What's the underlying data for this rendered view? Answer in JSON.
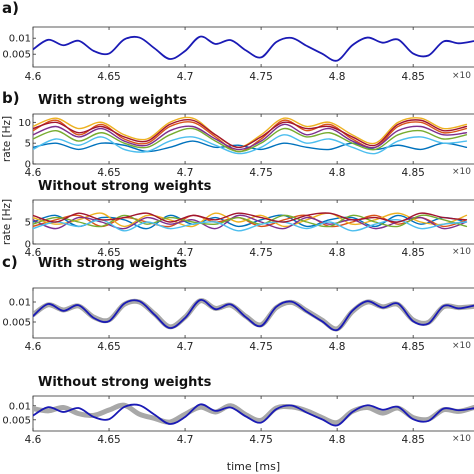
{
  "panel_labels": [
    "a)",
    "b)",
    "c)"
  ],
  "exponent_label": "×10",
  "colors": {
    "target": "#1a1ab5",
    "prediction_gray": "#a8a8a8",
    "rate_lines": [
      "#0072BD",
      "#D95319",
      "#EDB120",
      "#7E2F8E",
      "#77AC30",
      "#4DBEEE",
      "#A2142F"
    ]
  },
  "chart_data": [
    {
      "type": "line",
      "id": "a",
      "title": "",
      "xlabel": "",
      "ylabel": "",
      "xlim": [
        4.6,
        4.89
      ],
      "ylim": [
        0.001,
        0.0135
      ],
      "xticks": [
        "4.6",
        "4.65",
        "4.7",
        "4.75",
        "4.8",
        "4.85"
      ],
      "yticks": [
        "0.005",
        "0.01"
      ],
      "series": [
        {
          "role": "target",
          "x": [
            4.6,
            4.61,
            4.62,
            4.63,
            4.64,
            4.65,
            4.66,
            4.67,
            4.68,
            4.69,
            4.7,
            4.71,
            4.72,
            4.73,
            4.74,
            4.75,
            4.76,
            4.77,
            4.78,
            4.79,
            4.8,
            4.81,
            4.82,
            4.83,
            4.84,
            4.85,
            4.86,
            4.87,
            4.88,
            4.89
          ],
          "values": [
            0.0065,
            0.0095,
            0.0078,
            0.0092,
            0.006,
            0.0052,
            0.0096,
            0.0102,
            0.0068,
            0.0035,
            0.006,
            0.0105,
            0.0082,
            0.0094,
            0.0062,
            0.004,
            0.0088,
            0.0101,
            0.0076,
            0.0052,
            0.003,
            0.0078,
            0.0102,
            0.0086,
            0.0096,
            0.0052,
            0.0046,
            0.009,
            0.0084,
            0.0091
          ]
        }
      ]
    },
    {
      "type": "line",
      "id": "b1",
      "title": "With strong weights",
      "xlabel": "",
      "ylabel": "rate [Hz]",
      "xlim": [
        4.6,
        4.89
      ],
      "ylim": [
        0,
        12
      ],
      "xticks": [
        "4.6",
        "4.65",
        "4.7",
        "4.75",
        "4.8",
        "4.85"
      ],
      "yticks": [
        "0",
        "5",
        "10"
      ],
      "series": [
        {
          "x": [
            4.6,
            4.615,
            4.63,
            4.645,
            4.66,
            4.675,
            4.69,
            4.705,
            4.72,
            4.735,
            4.75,
            4.765,
            4.78,
            4.795,
            4.81,
            4.825,
            4.84,
            4.855,
            4.87,
            4.885
          ],
          "values": [
            4.0,
            5.0,
            3.5,
            5.0,
            4.5,
            3.0,
            4.0,
            5.5,
            4.0,
            4.5,
            3.5,
            5.0,
            4.0,
            3.5,
            5.0,
            3.5,
            4.5,
            3.5,
            5.0,
            4.0
          ]
        },
        {
          "x": [
            4.6,
            4.615,
            4.63,
            4.645,
            4.66,
            4.675,
            4.69,
            4.705,
            4.72,
            4.735,
            4.75,
            4.765,
            4.78,
            4.795,
            4.81,
            4.825,
            4.84,
            4.855,
            4.87,
            4.885
          ],
          "values": [
            8.0,
            10.5,
            7.0,
            9.5,
            6.0,
            5.0,
            9.0,
            10.0,
            6.5,
            3.0,
            6.0,
            10.5,
            8.0,
            9.5,
            6.0,
            4.0,
            9.0,
            10.0,
            7.5,
            8.5
          ]
        },
        {
          "x": [
            4.6,
            4.615,
            4.63,
            4.645,
            4.66,
            4.675,
            4.69,
            4.705,
            4.72,
            4.735,
            4.75,
            4.765,
            4.78,
            4.795,
            4.81,
            4.825,
            4.84,
            4.855,
            4.87,
            4.885
          ],
          "values": [
            9.0,
            11.0,
            8.5,
            10.0,
            7.0,
            6.0,
            10.0,
            11.0,
            7.0,
            4.0,
            7.0,
            11.0,
            9.0,
            10.0,
            7.0,
            5.0,
            10.0,
            11.0,
            8.5,
            9.5
          ]
        },
        {
          "x": [
            4.6,
            4.615,
            4.63,
            4.645,
            4.66,
            4.675,
            4.69,
            4.705,
            4.72,
            4.735,
            4.75,
            4.765,
            4.78,
            4.795,
            4.81,
            4.825,
            4.84,
            4.855,
            4.87,
            4.885
          ],
          "values": [
            7.0,
            9.0,
            6.5,
            8.5,
            5.5,
            4.5,
            8.0,
            9.0,
            6.0,
            3.5,
            5.5,
            9.5,
            7.0,
            8.5,
            5.5,
            4.0,
            8.0,
            9.0,
            7.0,
            7.5
          ]
        },
        {
          "x": [
            4.6,
            4.615,
            4.63,
            4.645,
            4.66,
            4.675,
            4.69,
            4.705,
            4.72,
            4.735,
            4.75,
            4.765,
            4.78,
            4.795,
            4.81,
            4.825,
            4.84,
            4.855,
            4.87,
            4.885
          ],
          "values": [
            6.0,
            8.0,
            5.5,
            7.5,
            5.0,
            4.0,
            7.0,
            8.5,
            5.5,
            3.0,
            5.0,
            8.5,
            6.5,
            7.5,
            5.0,
            3.5,
            7.0,
            8.0,
            6.0,
            7.0
          ]
        },
        {
          "x": [
            4.6,
            4.615,
            4.63,
            4.645,
            4.66,
            4.675,
            4.69,
            4.705,
            4.72,
            4.735,
            4.75,
            4.765,
            4.78,
            4.795,
            4.81,
            4.825,
            4.84,
            4.855,
            4.87,
            4.885
          ],
          "values": [
            3.5,
            6.0,
            4.5,
            6.5,
            3.5,
            3.0,
            5.5,
            6.5,
            4.5,
            2.5,
            4.0,
            7.0,
            5.0,
            6.0,
            4.0,
            2.5,
            5.5,
            6.5,
            5.0,
            5.5
          ]
        },
        {
          "x": [
            4.6,
            4.615,
            4.63,
            4.645,
            4.66,
            4.675,
            4.69,
            4.705,
            4.72,
            4.735,
            4.75,
            4.765,
            4.78,
            4.795,
            4.81,
            4.825,
            4.84,
            4.855,
            4.87,
            4.885
          ],
          "values": [
            8.5,
            10.0,
            7.5,
            9.0,
            6.5,
            5.5,
            9.5,
            10.5,
            7.0,
            4.0,
            6.5,
            10.0,
            8.5,
            9.0,
            6.5,
            4.5,
            9.5,
            10.5,
            8.0,
            9.0
          ]
        }
      ]
    },
    {
      "type": "line",
      "id": "b2",
      "title": "Without strong weights",
      "xlabel": "",
      "ylabel": "rate [Hz]",
      "xlim": [
        4.6,
        4.89
      ],
      "ylim": [
        0,
        10
      ],
      "xticks": [
        "4.6",
        "4.65",
        "4.7",
        "4.75",
        "4.8",
        "4.85"
      ],
      "yticks": [
        "0",
        "5"
      ],
      "series": [
        {
          "x": [
            4.6,
            4.615,
            4.63,
            4.645,
            4.66,
            4.675,
            4.69,
            4.705,
            4.72,
            4.735,
            4.75,
            4.765,
            4.78,
            4.795,
            4.81,
            4.825,
            4.84,
            4.855,
            4.87,
            4.885
          ],
          "values": [
            5.0,
            6.5,
            4.0,
            6.0,
            5.5,
            3.5,
            6.5,
            4.5,
            6.0,
            4.0,
            5.5,
            6.5,
            4.0,
            5.5,
            6.0,
            4.0,
            6.5,
            4.5,
            6.0,
            5.0
          ]
        },
        {
          "x": [
            4.6,
            4.615,
            4.63,
            4.645,
            4.66,
            4.675,
            4.69,
            4.705,
            4.72,
            4.735,
            4.75,
            4.765,
            4.78,
            4.795,
            4.81,
            4.825,
            4.84,
            4.855,
            4.87,
            4.885
          ],
          "values": [
            4.0,
            5.5,
            6.5,
            4.0,
            6.0,
            5.0,
            4.0,
            6.5,
            5.0,
            6.0,
            4.0,
            5.5,
            6.5,
            4.0,
            5.0,
            6.5,
            4.5,
            6.0,
            4.0,
            5.5
          ]
        },
        {
          "x": [
            4.6,
            4.615,
            4.63,
            4.645,
            4.66,
            4.675,
            4.69,
            4.705,
            4.72,
            4.735,
            4.75,
            4.765,
            4.78,
            4.795,
            4.81,
            4.825,
            4.84,
            4.855,
            4.87,
            4.885
          ],
          "values": [
            6.0,
            4.5,
            5.5,
            7.0,
            4.0,
            6.5,
            5.5,
            4.0,
            7.0,
            5.0,
            6.5,
            4.0,
            5.5,
            7.0,
            4.5,
            5.5,
            7.0,
            5.0,
            4.5,
            6.5
          ]
        },
        {
          "x": [
            4.6,
            4.615,
            4.63,
            4.645,
            4.66,
            4.675,
            4.69,
            4.705,
            4.72,
            4.735,
            4.75,
            4.765,
            4.78,
            4.795,
            4.81,
            4.825,
            4.84,
            4.855,
            4.87,
            4.885
          ],
          "values": [
            5.5,
            3.5,
            6.0,
            5.0,
            3.5,
            6.0,
            4.5,
            5.5,
            3.5,
            6.5,
            5.0,
            3.5,
            6.0,
            4.5,
            5.5,
            3.5,
            5.0,
            6.0,
            3.5,
            5.0
          ]
        },
        {
          "x": [
            4.6,
            4.615,
            4.63,
            4.645,
            4.66,
            4.675,
            4.69,
            4.705,
            4.72,
            4.735,
            4.75,
            4.765,
            4.78,
            4.795,
            4.81,
            4.825,
            4.84,
            4.855,
            4.87,
            4.885
          ],
          "values": [
            4.5,
            6.0,
            5.0,
            4.0,
            6.5,
            4.5,
            6.0,
            5.0,
            4.5,
            6.0,
            4.5,
            6.5,
            5.0,
            4.0,
            6.5,
            5.0,
            4.0,
            6.5,
            5.5,
            4.0
          ]
        },
        {
          "x": [
            4.6,
            4.615,
            4.63,
            4.645,
            4.66,
            4.675,
            4.69,
            4.705,
            4.72,
            4.735,
            4.75,
            4.765,
            4.78,
            4.795,
            4.81,
            4.825,
            4.84,
            4.855,
            4.87,
            4.885
          ],
          "values": [
            3.5,
            5.0,
            4.0,
            5.5,
            3.0,
            5.0,
            3.5,
            4.5,
            5.0,
            3.0,
            4.5,
            5.0,
            3.5,
            5.0,
            3.0,
            4.5,
            5.5,
            3.5,
            4.5,
            5.0
          ]
        },
        {
          "x": [
            4.6,
            4.615,
            4.63,
            4.645,
            4.66,
            4.675,
            4.69,
            4.705,
            4.72,
            4.735,
            4.75,
            4.765,
            4.78,
            4.795,
            4.81,
            4.825,
            4.84,
            4.855,
            4.87,
            4.885
          ],
          "values": [
            6.5,
            5.0,
            7.0,
            5.5,
            6.0,
            7.0,
            5.0,
            6.5,
            5.5,
            7.0,
            6.0,
            5.0,
            6.5,
            7.0,
            5.5,
            6.0,
            5.0,
            7.0,
            6.0,
            5.5
          ]
        }
      ]
    },
    {
      "type": "line",
      "id": "c1",
      "title": "With strong weights",
      "xlabel": "",
      "ylabel": "",
      "xlim": [
        4.6,
        4.89
      ],
      "ylim": [
        0.001,
        0.0135
      ],
      "xticks": [
        "4.6",
        "4.65",
        "4.7",
        "4.75",
        "4.8",
        "4.85"
      ],
      "yticks": [
        "0.005",
        "0.01"
      ],
      "series": [
        {
          "role": "prediction",
          "x": [
            4.6,
            4.61,
            4.62,
            4.63,
            4.64,
            4.65,
            4.66,
            4.67,
            4.68,
            4.69,
            4.7,
            4.71,
            4.72,
            4.73,
            4.74,
            4.75,
            4.76,
            4.77,
            4.78,
            4.79,
            4.8,
            4.81,
            4.82,
            4.83,
            4.84,
            4.85,
            4.86,
            4.87,
            4.88,
            4.89
          ],
          "values": [
            0.0068,
            0.0093,
            0.008,
            0.009,
            0.0062,
            0.0055,
            0.0094,
            0.01,
            0.007,
            0.0038,
            0.0062,
            0.0103,
            0.0084,
            0.0092,
            0.0064,
            0.0043,
            0.0086,
            0.0099,
            0.0078,
            0.0055,
            0.0033,
            0.0076,
            0.01,
            0.0088,
            0.0094,
            0.0055,
            0.0049,
            0.0088,
            0.0086,
            0.0089
          ]
        },
        {
          "role": "target",
          "x": [
            4.6,
            4.61,
            4.62,
            4.63,
            4.64,
            4.65,
            4.66,
            4.67,
            4.68,
            4.69,
            4.7,
            4.71,
            4.72,
            4.73,
            4.74,
            4.75,
            4.76,
            4.77,
            4.78,
            4.79,
            4.8,
            4.81,
            4.82,
            4.83,
            4.84,
            4.85,
            4.86,
            4.87,
            4.88,
            4.89
          ],
          "values": [
            0.0065,
            0.0095,
            0.0078,
            0.0092,
            0.006,
            0.0052,
            0.0096,
            0.0102,
            0.0068,
            0.0035,
            0.006,
            0.0105,
            0.0082,
            0.0094,
            0.0062,
            0.004,
            0.0088,
            0.0101,
            0.0076,
            0.0052,
            0.003,
            0.0078,
            0.0102,
            0.0086,
            0.0096,
            0.0052,
            0.0046,
            0.009,
            0.0084,
            0.0091
          ]
        }
      ]
    },
    {
      "type": "line",
      "id": "c2",
      "title": "Without strong weights",
      "xlabel": "time [ms]",
      "ylabel": "",
      "xlim": [
        4.6,
        4.89
      ],
      "ylim": [
        0.001,
        0.0135
      ],
      "xticks": [
        "4.6",
        "4.65",
        "4.7",
        "4.75",
        "4.8",
        "4.85"
      ],
      "yticks": [
        "0.005",
        "0.01"
      ],
      "series": [
        {
          "role": "prediction",
          "x": [
            4.6,
            4.61,
            4.62,
            4.63,
            4.64,
            4.65,
            4.66,
            4.67,
            4.68,
            4.69,
            4.7,
            4.71,
            4.72,
            4.73,
            4.74,
            4.75,
            4.76,
            4.77,
            4.78,
            4.79,
            4.8,
            4.81,
            4.82,
            4.83,
            4.84,
            4.85,
            4.86,
            4.87,
            4.88,
            4.89
          ],
          "values": [
            0.009,
            0.0082,
            0.0094,
            0.0072,
            0.0066,
            0.0085,
            0.0102,
            0.007,
            0.0055,
            0.0042,
            0.007,
            0.0095,
            0.0078,
            0.01,
            0.0068,
            0.0048,
            0.0092,
            0.0096,
            0.0082,
            0.0058,
            0.004,
            0.008,
            0.0094,
            0.0074,
            0.0092,
            0.0058,
            0.0052,
            0.0086,
            0.008,
            0.0094
          ]
        },
        {
          "role": "target",
          "x": [
            4.6,
            4.61,
            4.62,
            4.63,
            4.64,
            4.65,
            4.66,
            4.67,
            4.68,
            4.69,
            4.7,
            4.71,
            4.72,
            4.73,
            4.74,
            4.75,
            4.76,
            4.77,
            4.78,
            4.79,
            4.8,
            4.81,
            4.82,
            4.83,
            4.84,
            4.85,
            4.86,
            4.87,
            4.88,
            4.89
          ],
          "values": [
            0.0065,
            0.0095,
            0.0078,
            0.0092,
            0.006,
            0.0052,
            0.0096,
            0.0102,
            0.0068,
            0.0035,
            0.006,
            0.0105,
            0.0082,
            0.0094,
            0.0062,
            0.004,
            0.0088,
            0.0101,
            0.0076,
            0.0052,
            0.003,
            0.0078,
            0.0102,
            0.0086,
            0.0096,
            0.0052,
            0.0046,
            0.009,
            0.0084,
            0.0091
          ]
        }
      ]
    }
  ]
}
